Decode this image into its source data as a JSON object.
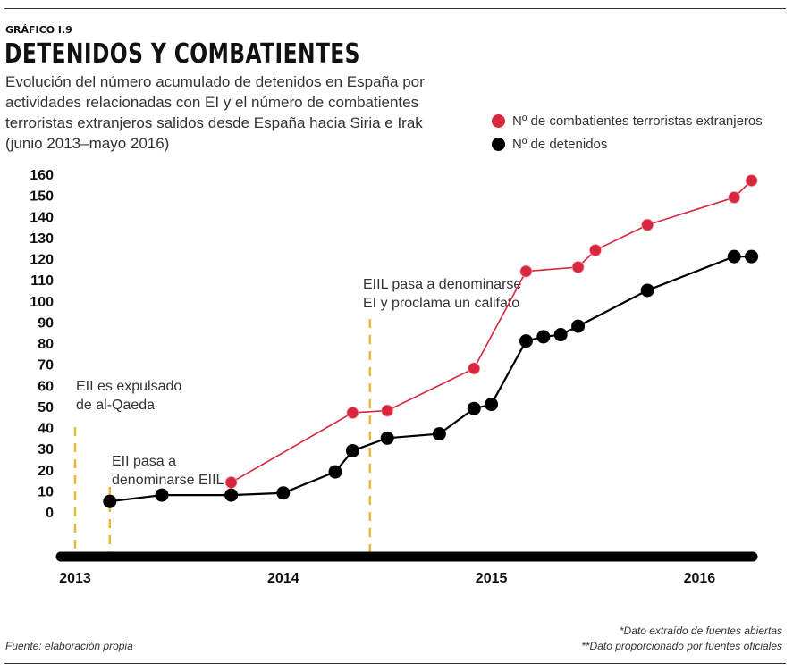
{
  "header": {
    "kicker": "GRÁFICO I.9",
    "title": "DETENIDOS Y COMBATIENTES",
    "subtitle_lines": [
      "Evolución del número acumulado de detenidos en España por",
      "actividades relacionadas con EI y el número de combatientes",
      "terroristas extranjeros salidos desde España hacia Siria e Irak",
      "(junio 2013–mayo 2016)"
    ]
  },
  "legend": [
    {
      "label": "Nº de combatientes terroristas extranjeros",
      "color": "#d7263d"
    },
    {
      "label": "Nº de detenidos",
      "color": "#000000"
    }
  ],
  "footer": {
    "source": "Fuente: elaboración propia",
    "note1": "*Dato extraído de fuentes abiertas",
    "note2": "**Dato proporcionado por fuentes oficiales"
  },
  "chart_data": {
    "type": "line",
    "x_axis": {
      "type": "time",
      "min": "2013-01",
      "max": "2016-04",
      "ticks": [
        "2013",
        "2014",
        "2015",
        "2016"
      ]
    },
    "y_axis": {
      "min": 0,
      "max": 160,
      "ticks": [
        0,
        10,
        20,
        30,
        40,
        50,
        60,
        70,
        80,
        90,
        100,
        110,
        120,
        130,
        140,
        150,
        160
      ]
    },
    "grid": false,
    "legend_position": "top-right",
    "series": [
      {
        "name": "Nº de combatientes terroristas extranjeros",
        "color": "#d7263d",
        "points": [
          {
            "x": "2013-10",
            "y": 14
          },
          {
            "x": "2014-05",
            "y": 47
          },
          {
            "x": "2014-07",
            "y": 48
          },
          {
            "x": "2014-12",
            "y": 68
          },
          {
            "x": "2015-03",
            "y": 114
          },
          {
            "x": "2015-06",
            "y": 116
          },
          {
            "x": "2015-07",
            "y": 124
          },
          {
            "x": "2015-10",
            "y": 136
          },
          {
            "x": "2016-03",
            "y": 149
          },
          {
            "x": "2016-04",
            "y": 157
          }
        ]
      },
      {
        "name": "Nº de detenidos",
        "color": "#000000",
        "points": [
          {
            "x": "2013-03",
            "y": 5
          },
          {
            "x": "2013-06",
            "y": 8
          },
          {
            "x": "2013-10",
            "y": 8
          },
          {
            "x": "2014-01",
            "y": 9
          },
          {
            "x": "2014-04",
            "y": 19
          },
          {
            "x": "2014-05",
            "y": 29
          },
          {
            "x": "2014-07",
            "y": 35
          },
          {
            "x": "2014-10",
            "y": 37
          },
          {
            "x": "2014-12",
            "y": 49
          },
          {
            "x": "2015-01",
            "y": 51
          },
          {
            "x": "2015-03",
            "y": 81
          },
          {
            "x": "2015-04",
            "y": 83
          },
          {
            "x": "2015-05",
            "y": 84
          },
          {
            "x": "2015-06",
            "y": 88
          },
          {
            "x": "2015-10",
            "y": 105
          },
          {
            "x": "2016-03",
            "y": 121
          },
          {
            "x": "2016-04",
            "y": 121
          }
        ]
      }
    ],
    "events": [
      {
        "x": "2013-01",
        "lines": [
          "EII es expulsado",
          "de al-Qaeda"
        ]
      },
      {
        "x": "2013-03",
        "lines": [
          "EII pasa a",
          "denominarse EIIL"
        ]
      },
      {
        "x": "2014-06",
        "lines": [
          "EIIL pasa a denominarse",
          "EI y proclama un califato"
        ]
      }
    ]
  }
}
